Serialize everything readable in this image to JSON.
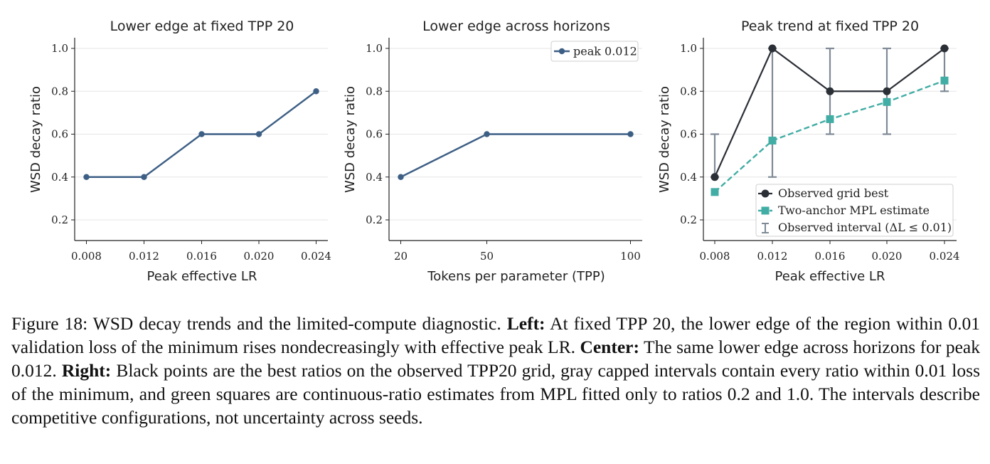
{
  "colors": {
    "blue": "#3d5f85",
    "dark": "#2b2f36",
    "teal": "#41ada4",
    "gray": "#7f8a96",
    "grid": "#e6e6e6"
  },
  "chart_data": [
    {
      "type": "line",
      "title": "Lower edge at fixed TPP 20",
      "xlabel": "Peak effective LR",
      "ylabel": "WSD decay ratio",
      "x_ticks": [
        "0.008",
        "0.012",
        "0.016",
        "0.020",
        "0.024"
      ],
      "y_ticks": [
        "0.2",
        "0.4",
        "0.6",
        "0.8",
        "1.0"
      ],
      "ylim": [
        0.1,
        1.05
      ],
      "grid": "horizontal",
      "series": [
        {
          "x": [
            0.008,
            0.012,
            0.016,
            0.02,
            0.024
          ],
          "values": [
            0.4,
            0.4,
            0.6,
            0.6,
            0.8
          ]
        }
      ]
    },
    {
      "type": "line",
      "title": "Lower edge across horizons",
      "xlabel": "Tokens per parameter (TPP)",
      "ylabel": "WSD decay ratio",
      "x_ticks": [
        "20",
        "50",
        "100"
      ],
      "y_ticks": [
        "0.2",
        "0.4",
        "0.6",
        "0.8",
        "1.0"
      ],
      "ylim": [
        0.1,
        1.05
      ],
      "grid": "horizontal",
      "legend_placement": "top-right",
      "series": [
        {
          "name": "peak 0.012",
          "x": [
            20,
            50,
            100
          ],
          "values": [
            0.4,
            0.6,
            0.6
          ]
        }
      ]
    },
    {
      "type": "line",
      "title": "Peak trend at fixed TPP 20",
      "xlabel": "Peak effective LR",
      "ylabel": "WSD decay ratio",
      "x_ticks": [
        "0.008",
        "0.012",
        "0.016",
        "0.020",
        "0.024"
      ],
      "y_ticks": [
        "0.2",
        "0.4",
        "0.6",
        "0.8",
        "1.0"
      ],
      "ylim": [
        0.1,
        1.05
      ],
      "grid": "horizontal",
      "legend_placement": "lower-right",
      "series": [
        {
          "name": "Observed grid best",
          "x": [
            0.008,
            0.012,
            0.016,
            0.02,
            0.024
          ],
          "values": [
            0.4,
            1.0,
            0.8,
            0.8,
            1.0
          ]
        },
        {
          "name": "Two-anchor MPL estimate",
          "x": [
            0.008,
            0.012,
            0.016,
            0.02,
            0.024
          ],
          "values": [
            0.33,
            0.57,
            0.67,
            0.75,
            0.85
          ]
        }
      ],
      "intervals": {
        "name": "Observed interval (ΔL ≤ 0.01)",
        "x": [
          0.008,
          0.012,
          0.016,
          0.02,
          0.024
        ],
        "low": [
          0.4,
          0.4,
          0.6,
          0.6,
          0.8
        ],
        "high": [
          0.6,
          1.0,
          1.0,
          1.0,
          1.0
        ]
      }
    }
  ],
  "caption": {
    "label": "Figure 18:",
    "intro": " WSD decay trends and the limited-compute diagnostic. ",
    "left_head": "Left:",
    "left_text": " At fixed TPP 20, the lower edge of the region within 0.01 validation loss of the minimum rises nondecreasingly with effective peak LR. ",
    "center_head": "Center:",
    "center_text": " The same lower edge across horizons for peak 0.012. ",
    "right_head": "Right:",
    "right_text": " Black points are the best ratios on the observed TPP20 grid, gray capped intervals contain every ratio within 0.01 loss of the minimum, and green squares are continuous-ratio estimates from MPL fitted only to ratios 0.2 and 1.0. The intervals describe competitive configurations, not uncertainty across seeds."
  }
}
